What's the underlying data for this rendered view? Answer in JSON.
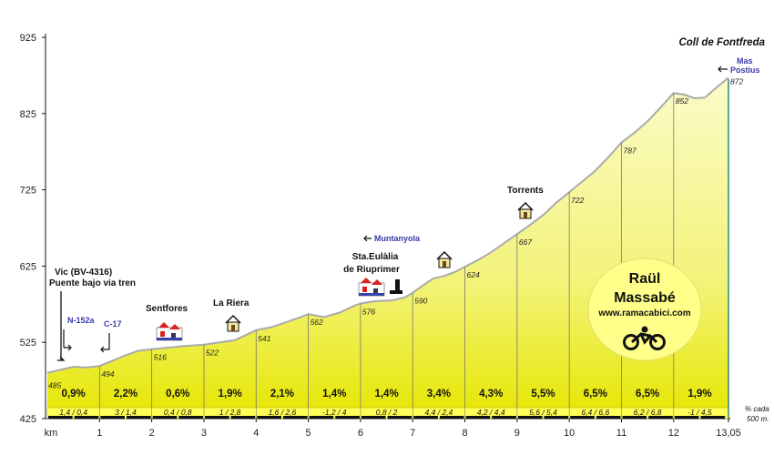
{
  "chart_data": {
    "type": "area",
    "title": "Coll de Fontfreda",
    "xlabel": "km",
    "ylabel": "",
    "xlim": [
      0,
      13.05
    ],
    "ylim": [
      425,
      925
    ],
    "x_ticks": [
      "1",
      "2",
      "3",
      "4",
      "5",
      "6",
      "7",
      "8",
      "9",
      "10",
      "11",
      "12",
      "13,05"
    ],
    "y_ticks": [
      "425",
      "525",
      "625",
      "725",
      "825",
      "925"
    ],
    "elevation_points": [
      {
        "km": 0,
        "alt": 485,
        "label": "485"
      },
      {
        "km": 1,
        "alt": 494,
        "label": "494"
      },
      {
        "km": 2,
        "alt": 516,
        "label": "516"
      },
      {
        "km": 3,
        "alt": 522,
        "label": "522"
      },
      {
        "km": 4,
        "alt": 541,
        "label": "541"
      },
      {
        "km": 5,
        "alt": 562,
        "label": "562"
      },
      {
        "km": 6,
        "alt": 576,
        "label": "576"
      },
      {
        "km": 7,
        "alt": 590,
        "label": "590"
      },
      {
        "km": 8,
        "alt": 624,
        "label": "624"
      },
      {
        "km": 9,
        "alt": 667,
        "label": "667"
      },
      {
        "km": 10,
        "alt": 722,
        "label": "722"
      },
      {
        "km": 11,
        "alt": 787,
        "label": "787"
      },
      {
        "km": 12,
        "alt": 852,
        "label": "852"
      },
      {
        "km": 13.05,
        "alt": 872,
        "label": "872"
      }
    ],
    "profile": [
      [
        0,
        485
      ],
      [
        0.25,
        489
      ],
      [
        0.5,
        493
      ],
      [
        0.75,
        492
      ],
      [
        1,
        494
      ],
      [
        1.25,
        501
      ],
      [
        1.5,
        508
      ],
      [
        1.75,
        514
      ],
      [
        2,
        516
      ],
      [
        2.3,
        518
      ],
      [
        2.6,
        520
      ],
      [
        3,
        522
      ],
      [
        3.3,
        525
      ],
      [
        3.6,
        528
      ],
      [
        4,
        541
      ],
      [
        4.3,
        545
      ],
      [
        4.6,
        552
      ],
      [
        4.85,
        558
      ],
      [
        5,
        562
      ],
      [
        5.3,
        558
      ],
      [
        5.6,
        564
      ],
      [
        5.85,
        572
      ],
      [
        6,
        576
      ],
      [
        6.3,
        579
      ],
      [
        6.6,
        580
      ],
      [
        6.85,
        584
      ],
      [
        7,
        590
      ],
      [
        7.2,
        600
      ],
      [
        7.4,
        609
      ],
      [
        7.6,
        612
      ],
      [
        7.8,
        617
      ],
      [
        8,
        624
      ],
      [
        8.25,
        633
      ],
      [
        8.5,
        643
      ],
      [
        8.75,
        655
      ],
      [
        9,
        667
      ],
      [
        9.25,
        679
      ],
      [
        9.5,
        692
      ],
      [
        9.75,
        708
      ],
      [
        10,
        722
      ],
      [
        10.25,
        736
      ],
      [
        10.5,
        750
      ],
      [
        10.75,
        768
      ],
      [
        11,
        787
      ],
      [
        11.25,
        800
      ],
      [
        11.5,
        815
      ],
      [
        11.75,
        833
      ],
      [
        12,
        852
      ],
      [
        12.2,
        850
      ],
      [
        12.4,
        845
      ],
      [
        12.6,
        846
      ],
      [
        12.8,
        858
      ],
      [
        13.05,
        872
      ]
    ],
    "segments": [
      {
        "grade": "0,9%",
        "info": "1,4  /  0,4"
      },
      {
        "grade": "2,2%",
        "info": "3  /  1,4"
      },
      {
        "grade": "0,6%",
        "info": "0,4  /  0,8"
      },
      {
        "grade": "1,9%",
        "info": "1  /  2,8"
      },
      {
        "grade": "2,1%",
        "info": "1,6  /  2,6"
      },
      {
        "grade": "1,4%",
        "info": "-1,2  /  4"
      },
      {
        "grade": "1,4%",
        "info": "0,8  /  2"
      },
      {
        "grade": "3,4%",
        "info": "4,4  /  2,4"
      },
      {
        "grade": "4,3%",
        "info": "4,2  /  4,4"
      },
      {
        "grade": "5,5%",
        "info": "5,6  /  5,4"
      },
      {
        "grade": "6,5%",
        "info": "6,4  /  6,6"
      },
      {
        "grade": "6,5%",
        "info": "6,2  /  6,8"
      },
      {
        "grade": "1,9%",
        "info": "-1  /  4,5"
      }
    ],
    "annotations": {
      "vic": [
        "Vic (BV-4316)",
        "Puente bajo via tren"
      ],
      "n152": "N-152a",
      "c17": "C-17",
      "sentfores": "Sentfores",
      "lariera": "La Riera",
      "muntanyola": "Muntanyola",
      "staeulalia": [
        "Sta.Eulàlia",
        "de Riuprimer"
      ],
      "torrents": "Torrents",
      "masPostius": [
        "Mas",
        "Postius"
      ],
      "note": [
        "% cada",
        "500 m."
      ]
    }
  },
  "badge": {
    "name_first": "Raül",
    "name_last": "Massabé",
    "url": "www.ramacabici.com"
  },
  "colors": {
    "fill_top": "#f4f490",
    "fill_bottom": "#e8e800",
    "outline": "#b8b8b8",
    "badge": "#ffff8a",
    "band": "#ffff66",
    "road_blue": "#3a3aa8",
    "end_line": "#2a8a7a"
  }
}
